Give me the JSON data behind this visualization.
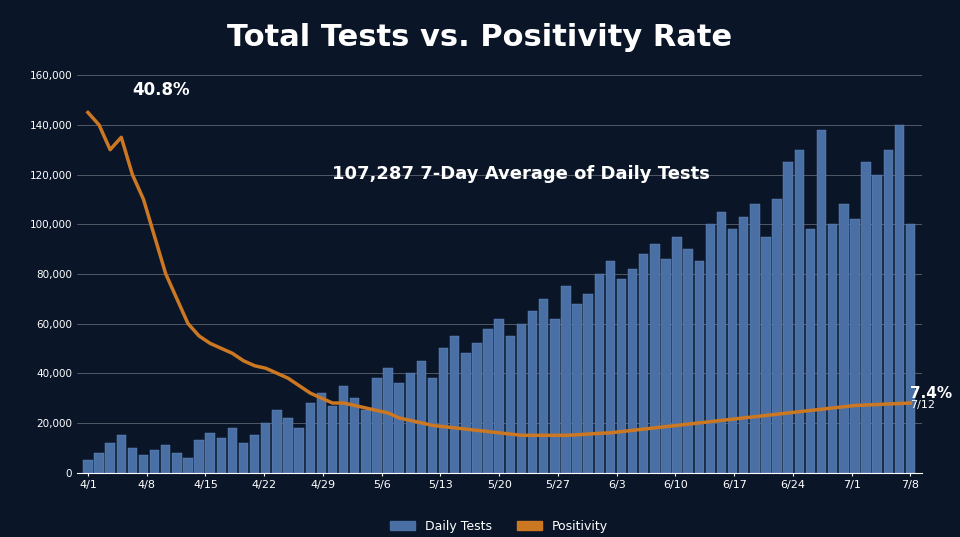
{
  "title": "Total Tests vs. Positivity Rate",
  "annotation_avg": "107,287 7-Day Average of Daily Tests",
  "annotation_peak": "40.8%",
  "annotation_end": "7.4%",
  "annotation_end_date": "7/12",
  "background_color": "#0a1628",
  "title_bg_color": "#e07820",
  "title_text_color": "#ffffff",
  "bar_color": "#4a6fa5",
  "bar_edge_color": "#6a8fc5",
  "line_color": "#cc7722",
  "grid_color": "#ffffff",
  "text_color": "#ffffff",
  "x_labels": [
    "4/1",
    "4/8",
    "4/15",
    "4/22",
    "4/29",
    "5/6",
    "5/13",
    "5/20",
    "5/27",
    "6/3",
    "6/10",
    "6/17",
    "6/24",
    "7/1",
    "7/8"
  ],
  "ylim": [
    0,
    160000
  ],
  "yticks": [
    0,
    20000,
    40000,
    60000,
    80000,
    100000,
    120000,
    140000,
    160000
  ],
  "daily_tests": [
    5000,
    8000,
    12000,
    15000,
    10000,
    7000,
    9000,
    11000,
    8000,
    6000,
    13000,
    16000,
    14000,
    18000,
    12000,
    15000,
    20000,
    25000,
    22000,
    18000,
    28000,
    32000,
    27000,
    35000,
    30000,
    25000,
    38000,
    42000,
    36000,
    40000,
    45000,
    38000,
    50000,
    55000,
    48000,
    52000,
    58000,
    62000,
    55000,
    60000,
    65000,
    70000,
    62000,
    75000,
    68000,
    72000,
    80000,
    85000,
    78000,
    82000,
    88000,
    92000,
    86000,
    95000,
    90000,
    85000,
    100000,
    105000,
    98000,
    103000,
    108000,
    95000,
    110000,
    125000,
    130000,
    98000,
    138000,
    100000,
    108000,
    102000,
    125000,
    120000,
    130000,
    140000,
    100000
  ],
  "positivity": [
    145000,
    140000,
    130000,
    135000,
    120000,
    110000,
    95000,
    80000,
    70000,
    60000,
    55000,
    52000,
    50000,
    48000,
    45000,
    43000,
    42000,
    40000,
    38000,
    35000,
    32000,
    30000,
    28000,
    28000,
    27000,
    26000,
    25000,
    24000,
    22000,
    21000,
    20000,
    19000,
    18500,
    18000,
    17500,
    17000,
    16500,
    16000,
    15500,
    15000,
    15000,
    15000,
    15000,
    15000,
    15200,
    15500,
    15800,
    16000,
    16500,
    17000,
    17500,
    18000,
    18500,
    19000,
    19500,
    20000,
    20500,
    21000,
    21500,
    22000,
    22500,
    23000,
    23500,
    24000,
    24500,
    25000,
    25500,
    26000,
    26500,
    27000,
    27200,
    27400,
    27600,
    27800,
    28000
  ]
}
